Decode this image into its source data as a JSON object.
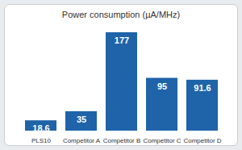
{
  "chart_data": {
    "type": "bar",
    "title": "Power consumption (µA/MHz)",
    "categories": [
      "PLS10",
      "Competitor A",
      "Competitor B",
      "Competitor C",
      "Competitor D"
    ],
    "values": [
      18.6,
      35,
      177,
      95,
      91.6
    ],
    "color": "#1f63a8",
    "data_labels": true,
    "tick_labels": "x"
  }
}
